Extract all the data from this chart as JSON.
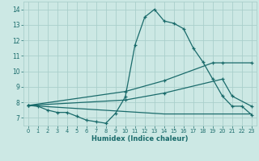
{
  "xlabel": "Humidex (Indice chaleur)",
  "bg_color": "#cce8e4",
  "grid_color": "#aacfcb",
  "line_color": "#1a6b6b",
  "xlim": [
    -0.5,
    23.5
  ],
  "ylim": [
    6.5,
    14.5
  ],
  "xticks": [
    0,
    1,
    2,
    3,
    4,
    5,
    6,
    7,
    8,
    9,
    10,
    11,
    12,
    13,
    14,
    15,
    16,
    17,
    18,
    19,
    20,
    21,
    22,
    23
  ],
  "yticks": [
    7,
    8,
    9,
    10,
    11,
    12,
    13,
    14
  ],
  "line1_x": [
    0,
    1,
    2,
    3,
    4,
    5,
    6,
    7,
    8,
    9,
    10,
    11,
    12,
    13,
    14,
    15,
    16,
    17,
    18,
    19,
    20,
    21,
    22,
    23
  ],
  "line1_y": [
    7.8,
    7.75,
    7.5,
    7.35,
    7.35,
    7.1,
    6.85,
    6.75,
    6.65,
    7.3,
    8.35,
    11.7,
    13.5,
    14.0,
    13.25,
    13.1,
    12.75,
    11.5,
    10.6,
    9.5,
    8.4,
    7.75,
    7.75,
    7.2
  ],
  "line2_x": [
    0,
    14,
    23
  ],
  "line2_y": [
    7.8,
    7.25,
    7.25
  ],
  "line3_x": [
    0,
    10,
    14,
    20,
    21,
    23
  ],
  "line3_y": [
    7.8,
    8.15,
    8.6,
    9.5,
    8.4,
    7.75
  ],
  "line4_x": [
    0,
    10,
    14,
    19,
    20,
    23
  ],
  "line4_y": [
    7.8,
    8.7,
    9.4,
    10.55,
    10.55,
    10.55
  ]
}
